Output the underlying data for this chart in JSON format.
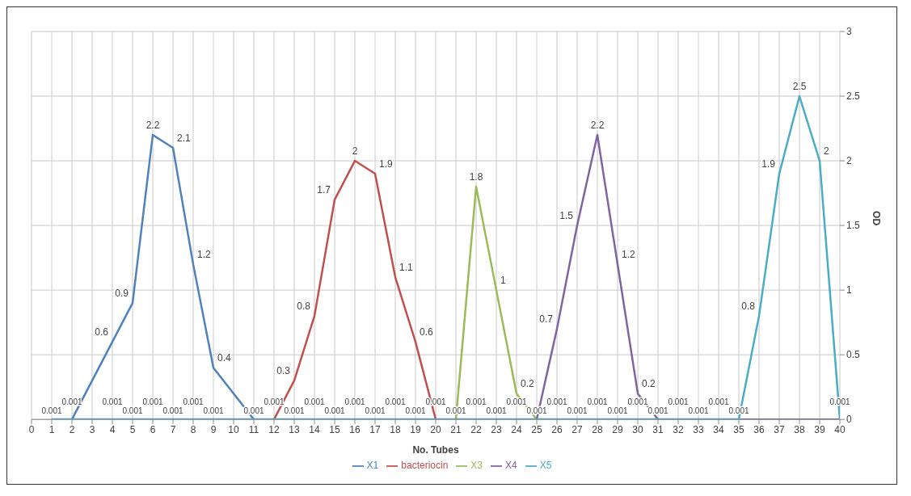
{
  "chart_data": {
    "type": "line",
    "xlabel": "No. Tubes",
    "ylabel": "OD",
    "x": [
      1,
      2,
      3,
      4,
      5,
      6,
      7,
      8,
      9,
      10,
      11,
      12,
      13,
      14,
      15,
      16,
      17,
      18,
      19,
      20,
      21,
      22,
      23,
      24,
      25,
      26,
      27,
      28,
      29,
      30,
      31,
      32,
      33,
      34,
      35,
      36,
      37,
      38,
      39,
      40
    ],
    "xlim": [
      0,
      40
    ],
    "xticks": [
      0,
      1,
      2,
      3,
      4,
      5,
      6,
      7,
      8,
      9,
      10,
      11,
      12,
      13,
      14,
      15,
      16,
      17,
      18,
      19,
      20,
      21,
      22,
      23,
      24,
      25,
      26,
      27,
      28,
      29,
      30,
      31,
      32,
      33,
      34,
      35,
      36,
      37,
      38,
      39,
      40
    ],
    "ylim": [
      0,
      3
    ],
    "yticks": [
      0,
      0.5,
      1,
      1.5,
      2,
      2.5,
      3
    ],
    "grid": true,
    "legend": "bottom",
    "marker": "none",
    "line_style": "solid",
    "series": [
      {
        "name": "X1",
        "color": "#4f81bd",
        "values": [
          null,
          0,
          0.3,
          0.6,
          0.9,
          2.2,
          2.1,
          1.2,
          0.4,
          0.2,
          0,
          null,
          null,
          null,
          null,
          null,
          null,
          null,
          null,
          null,
          null,
          null,
          null,
          null,
          null,
          null,
          null,
          null,
          null,
          null,
          null,
          null,
          null,
          null,
          null,
          null,
          null,
          null,
          null,
          null
        ],
        "value_labels": [
          null,
          null,
          null,
          "0.6",
          "0.9",
          "2.2",
          "2.1",
          "1.2",
          "0.4",
          null,
          null,
          null,
          null,
          null,
          null,
          null,
          null,
          null,
          null,
          null,
          null,
          null,
          null,
          null,
          null,
          null,
          null,
          null,
          null,
          null,
          null,
          null,
          null,
          null,
          null,
          null,
          null,
          null,
          null,
          null
        ]
      },
      {
        "name": "bacteriocin",
        "color": "#c0504d",
        "values": [
          null,
          null,
          null,
          null,
          null,
          null,
          null,
          null,
          null,
          null,
          null,
          0,
          0.3,
          0.8,
          1.7,
          2,
          1.9,
          1.1,
          0.6,
          0,
          null,
          null,
          null,
          null,
          null,
          null,
          null,
          null,
          null,
          null,
          null,
          null,
          null,
          null,
          null,
          null,
          null,
          null,
          null,
          null
        ],
        "value_labels": [
          null,
          null,
          null,
          null,
          null,
          null,
          null,
          null,
          null,
          null,
          null,
          null,
          "0.3",
          "0.8",
          "1.7",
          "2",
          "1.9",
          "1.1",
          "0.6",
          null,
          null,
          null,
          null,
          null,
          null,
          null,
          null,
          null,
          null,
          null,
          null,
          null,
          null,
          null,
          null,
          null,
          null,
          null,
          null,
          null
        ]
      },
      {
        "name": "X3",
        "color": "#9bbb59",
        "values": [
          null,
          null,
          null,
          null,
          null,
          null,
          null,
          null,
          null,
          null,
          null,
          null,
          null,
          null,
          null,
          null,
          null,
          null,
          null,
          null,
          0,
          1.8,
          1,
          0.2,
          0,
          null,
          null,
          null,
          null,
          null,
          null,
          null,
          null,
          null,
          null,
          null,
          null,
          null,
          null,
          null
        ],
        "value_labels": [
          null,
          null,
          null,
          null,
          null,
          null,
          null,
          null,
          null,
          null,
          null,
          null,
          null,
          null,
          null,
          null,
          null,
          null,
          null,
          null,
          null,
          "1.8",
          "1",
          "0.2",
          null,
          null,
          null,
          null,
          null,
          null,
          null,
          null,
          null,
          null,
          null,
          null,
          null,
          null,
          null,
          null
        ]
      },
      {
        "name": "X4",
        "color": "#8064a2",
        "values": [
          null,
          null,
          null,
          null,
          null,
          null,
          null,
          null,
          null,
          null,
          null,
          null,
          null,
          null,
          null,
          null,
          null,
          null,
          null,
          null,
          null,
          null,
          null,
          null,
          0,
          0.7,
          1.5,
          2.2,
          1.2,
          0.2,
          0,
          0,
          0,
          0,
          0,
          0,
          0,
          0,
          0,
          0
        ],
        "value_labels": [
          null,
          null,
          null,
          null,
          null,
          null,
          null,
          null,
          null,
          null,
          null,
          null,
          null,
          null,
          null,
          null,
          null,
          null,
          null,
          null,
          null,
          null,
          null,
          null,
          null,
          "0.7",
          "1.5",
          "2.2",
          "1.2",
          "0.2",
          null,
          null,
          null,
          null,
          null,
          null,
          null,
          null,
          null,
          null
        ]
      },
      {
        "name": "X5",
        "color": "#4bacc6",
        "values": [
          0.001,
          0.001,
          0.001,
          0.001,
          0.001,
          0.001,
          0.001,
          0.001,
          0.001,
          0.001,
          0.001,
          0.001,
          0.001,
          0.001,
          0.001,
          0.001,
          0.001,
          0.001,
          0.001,
          0.001,
          0.001,
          0.001,
          0.001,
          0.001,
          0.001,
          0.001,
          0.001,
          0.001,
          0.001,
          0.001,
          0.001,
          0.001,
          0.001,
          0.001,
          0.001,
          0.8,
          1.9,
          2.5,
          2,
          0.001
        ],
        "value_labels": [
          "0.001",
          "0.001",
          null,
          "0.001",
          "0.001",
          "0.001",
          "0.001",
          "0.001",
          "0.001",
          null,
          "0.001",
          "0.001",
          "0.001",
          "0.001",
          "0.001",
          "0.001",
          "0.001",
          "0.001",
          "0.001",
          "0.001",
          "0.001",
          "0.001",
          "0.001",
          "0.001",
          "0.001",
          "0.001",
          "0.001",
          "0.001",
          "0.001",
          "0.001",
          "0.001",
          "0.001",
          "0.001",
          "0.001",
          "0.001",
          "0.8",
          "1.9",
          "2.5",
          "2",
          "0.001"
        ]
      }
    ]
  }
}
